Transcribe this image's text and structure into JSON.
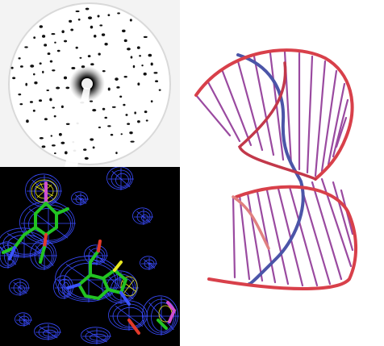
{
  "figure": {
    "panels": [
      {
        "id": "diffraction-pattern",
        "depicts": "x-ray-diffraction"
      },
      {
        "id": "electron-density-map",
        "depicts": "nucleotide-model-in-density-mesh"
      },
      {
        "id": "nucleic-acid-helix",
        "depicts": "double-helix-ribbon-with-base-rungs"
      }
    ],
    "colors": {
      "diffraction_bg": "#f1f1f1",
      "diffraction_spot": "#111111",
      "density_bg": "#000000",
      "mesh_blue": "#3a4cff",
      "mesh_yellow": "#e8e820",
      "stick_green": "#22c322",
      "stick_red": "#e23a2a",
      "stick_blue": "#3b54ff",
      "stick_magenta": "#d04fd0",
      "strand_red": "#d8404a",
      "strand_blue": "#4b55a8",
      "rung_purple": "#9a4aa0"
    }
  }
}
